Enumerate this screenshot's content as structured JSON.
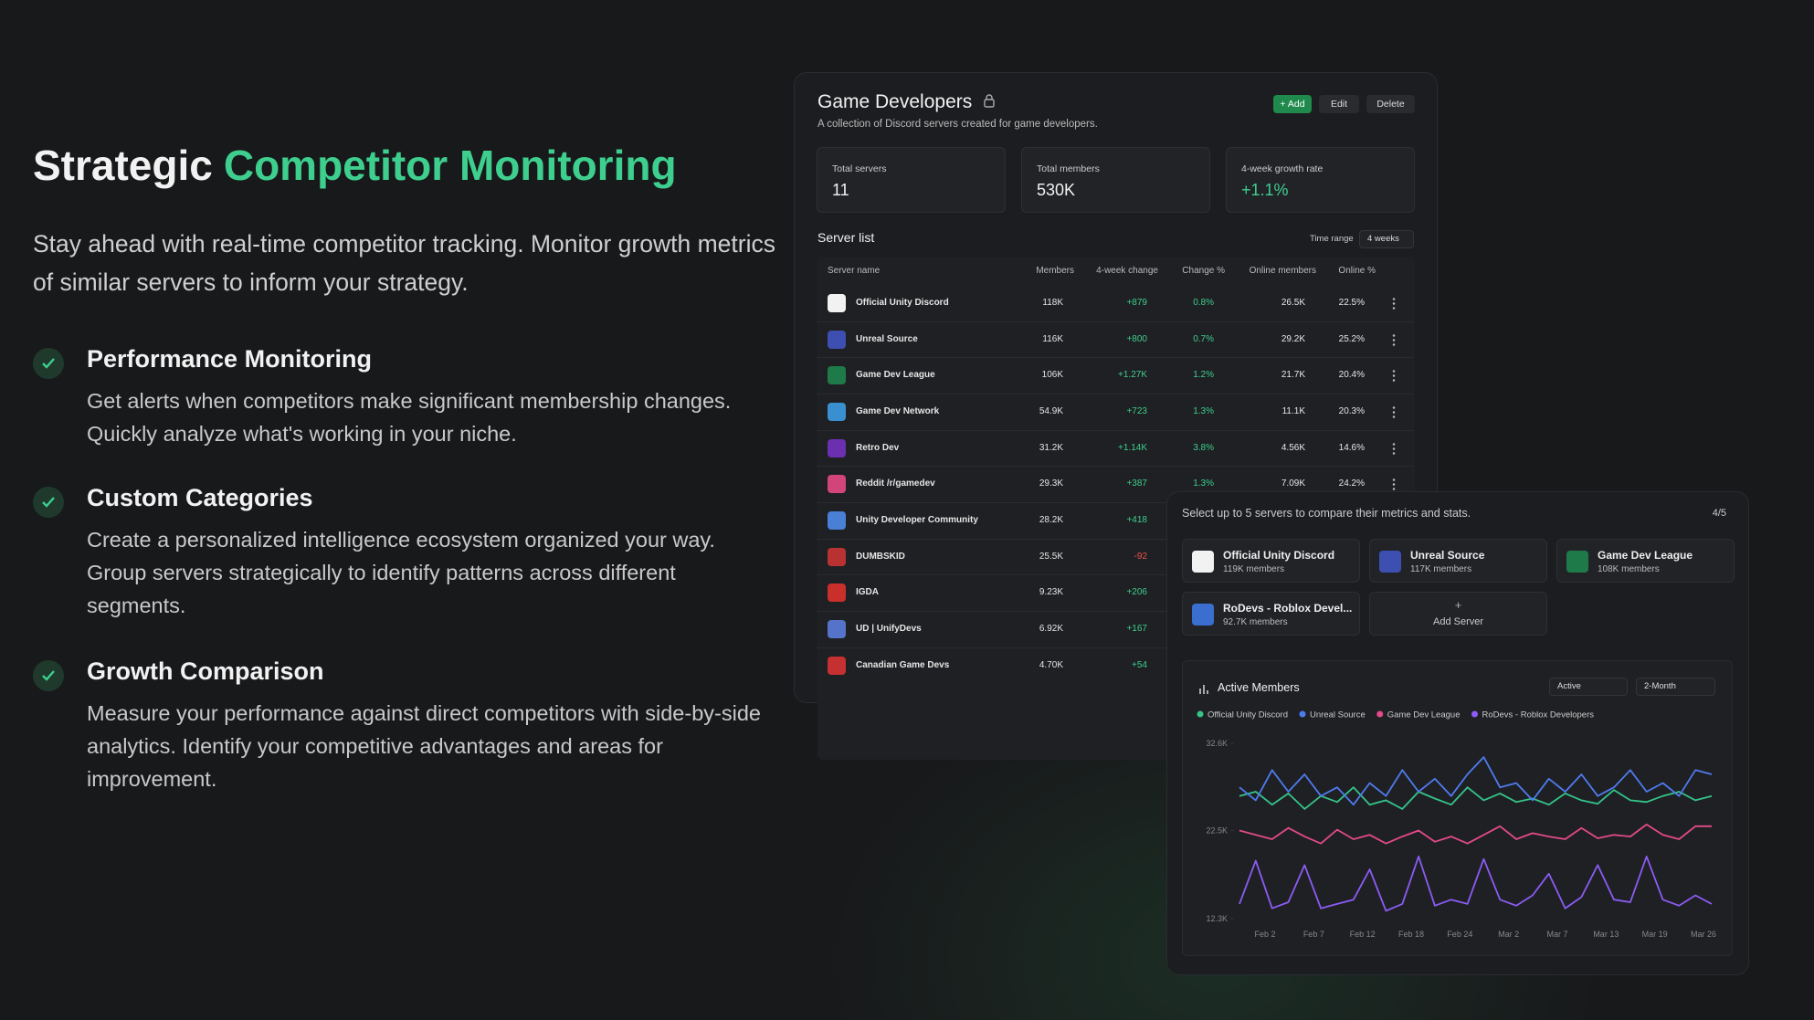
{
  "hero": {
    "title_lead": "Strategic",
    "title_highlight": "Competitor Monitoring",
    "intro": "Stay ahead with real-time competitor tracking. Monitor growth metrics of similar servers to inform your strategy.",
    "features": [
      {
        "title": "Performance Monitoring",
        "text": "Get alerts when competitors make significant membership changes. Quickly analyze what's working in your niche."
      },
      {
        "title": "Custom Categories",
        "text": "Create a personalized intelligence ecosystem organized your way. Group servers strategically to identify patterns across different segments."
      },
      {
        "title": "Growth Comparison",
        "text": "Measure your performance against direct competitors with side-by-side analytics. Identify your competitive advantages and areas for improvement."
      }
    ]
  },
  "panel": {
    "title": "Game Developers",
    "subtitle": "A collection of Discord servers created for game developers.",
    "buttons": [
      "+ Add",
      "Edit",
      "Delete"
    ],
    "stats": [
      {
        "label": "Total servers",
        "value": "11"
      },
      {
        "label": "Total members",
        "value": "530K"
      },
      {
        "label": "4-week growth rate",
        "value": "+1.1%"
      }
    ],
    "list_title": "Server list",
    "time_range_label": "Time range",
    "time_range": "4 weeks"
  },
  "table": {
    "headers": [
      "Server name",
      "Members",
      "4-week change",
      "Change %",
      "Online members",
      "Online %"
    ],
    "rows": [
      [
        "Official Unity Discord",
        "118K",
        "+879",
        "0.8%",
        "26.5K",
        "22.5%"
      ],
      [
        "Unreal Source",
        "116K",
        "+800",
        "0.7%",
        "29.2K",
        "25.2%"
      ],
      [
        "Game Dev League",
        "106K",
        "+1.27K",
        "1.2%",
        "21.7K",
        "20.4%"
      ],
      [
        "Game Dev Network",
        "54.9K",
        "+723",
        "1.3%",
        "11.1K",
        "20.3%"
      ],
      [
        "Retro Dev",
        "31.2K",
        "+1.14K",
        "3.8%",
        "4.56K",
        "14.6%"
      ],
      [
        "Reddit /r/gamedev",
        "29.3K",
        "+387",
        "1.3%",
        "7.09K",
        "24.2%"
      ],
      [
        "Unity Developer Community",
        "28.2K",
        "+418"
      ],
      [
        "DUMBSKID",
        "25.5K",
        "-92"
      ],
      [
        "IGDA",
        "9.23K",
        "+206"
      ],
      [
        "UD | UnifyDevs",
        "6.92K",
        "+167"
      ],
      [
        "Canadian Game Devs",
        "4.70K",
        "+54"
      ]
    ]
  },
  "compare": {
    "prompt": "Select up to 5 servers to compare their metrics and stats.",
    "count": "4/5",
    "servers": [
      {
        "name": "Official Unity Discord",
        "members": "119K members"
      },
      {
        "name": "Unreal Source",
        "members": "117K members"
      },
      {
        "name": "Game Dev League",
        "members": "108K members"
      },
      {
        "name": "RoDevs - Roblox Devel...",
        "members": "92.7K members"
      }
    ],
    "add": "+",
    "add_label": "Add Server",
    "metric": "Active",
    "period": "2-Month"
  },
  "chart_data": {
    "type": "line",
    "title": "Active Members",
    "ylim": [
      12300,
      32600
    ],
    "yticks": [
      {
        "value": 32600,
        "label": "32.6K"
      },
      {
        "value": 22500,
        "label": "22.5K"
      },
      {
        "value": 12300,
        "label": "12.3K"
      }
    ],
    "xticks": [
      "Feb 2",
      "Feb 7",
      "Feb 12",
      "Feb 18",
      "Feb 24",
      "Mar 2",
      "Mar 7",
      "Mar 13",
      "Mar 19",
      "Mar 26"
    ],
    "series": [
      {
        "name": "Official Unity Discord",
        "color": "#34c48a",
        "values": [
          26500,
          27000,
          25500,
          26800,
          25000,
          26500,
          25800,
          27500,
          25500,
          26000,
          25000,
          27000,
          26200,
          25500,
          27500,
          26000,
          26800,
          25800,
          26200,
          25500,
          26800,
          26000,
          25600,
          27200,
          26000,
          25800,
          26500,
          27000,
          26000,
          26500
        ]
      },
      {
        "name": "Unreal Source",
        "color": "#4f7bf0",
        "values": [
          27500,
          26000,
          29500,
          27000,
          29000,
          26500,
          27500,
          25500,
          28000,
          26500,
          29500,
          27000,
          28500,
          26500,
          29000,
          31000,
          27500,
          28000,
          26000,
          28500,
          27000,
          29000,
          26500,
          27500,
          29500,
          27000,
          28000,
          26500,
          29500,
          29000
        ]
      },
      {
        "name": "Game Dev League",
        "color": "#e24a8a",
        "values": [
          22500,
          22000,
          21500,
          22800,
          21800,
          21000,
          22600,
          21500,
          22000,
          21000,
          21800,
          22500,
          21200,
          21800,
          21000,
          22000,
          23000,
          21500,
          22200,
          21800,
          21500,
          22800,
          21600,
          22000,
          21800,
          23200,
          22000,
          21500,
          23000,
          23000
        ]
      },
      {
        "name": "RoDevs - Roblox Developers",
        "color": "#8b5cf6",
        "values": [
          14000,
          19000,
          13500,
          14200,
          18500,
          13500,
          14000,
          14500,
          18000,
          13200,
          14000,
          19500,
          13800,
          14500,
          14000,
          19200,
          14500,
          13800,
          15000,
          17500,
          13500,
          14800,
          18500,
          14500,
          14200,
          19500,
          14500,
          13800,
          15000,
          14000
        ]
      }
    ]
  }
}
